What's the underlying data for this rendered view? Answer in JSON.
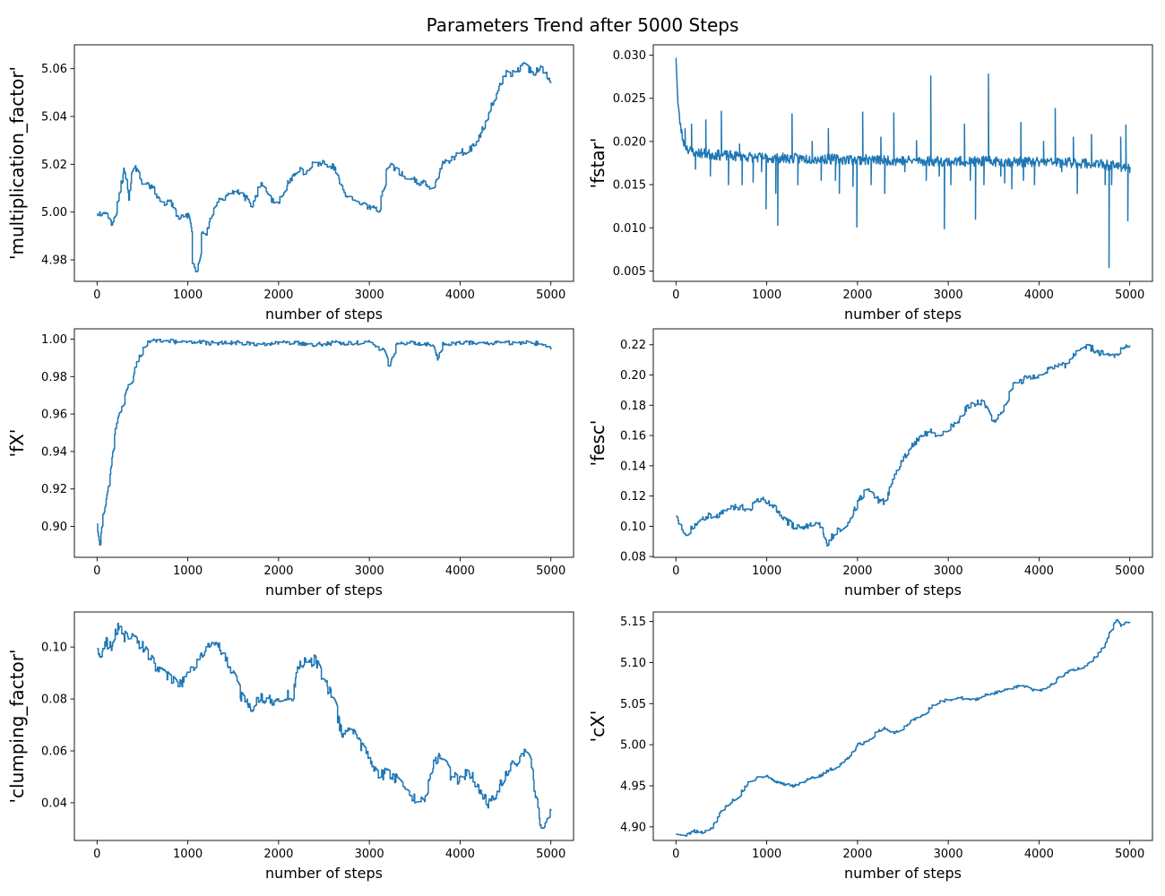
{
  "figure": {
    "title": "Parameters Trend after 5000 Steps"
  },
  "colors": {
    "line": "#1f77b4",
    "axes": "#000000",
    "background": "#ffffff"
  },
  "chart_data": [
    {
      "type": "line",
      "title": "",
      "xlabel": "number of steps",
      "ylabel": "'multiplication_factor'",
      "xlim": [
        -250,
        5250
      ],
      "ylim": [
        4.971,
        5.07
      ],
      "xticks": [
        0,
        1000,
        2000,
        3000,
        4000,
        5000
      ],
      "yticks": [
        4.98,
        5.0,
        5.02,
        5.04,
        5.06
      ],
      "ytick_labels": [
        "4.98",
        "5.00",
        "5.02",
        "5.04",
        "5.06"
      ],
      "series": [
        {
          "style": "step-noise",
          "seed": 11,
          "noise": 0.0015,
          "x": [
            0,
            50,
            100,
            150,
            200,
            250,
            300,
            350,
            400,
            450,
            500,
            600,
            700,
            800,
            900,
            1000,
            1050,
            1100,
            1150,
            1200,
            1300,
            1400,
            1500,
            1600,
            1700,
            1800,
            1900,
            2000,
            2100,
            2200,
            2300,
            2400,
            2500,
            2600,
            2700,
            2800,
            2900,
            3000,
            3100,
            3150,
            3200,
            3300,
            3400,
            3500,
            3600,
            3700,
            3800,
            3900,
            4000,
            4100,
            4200,
            4300,
            4400,
            4500,
            4600,
            4700,
            4800,
            4900,
            5000
          ],
          "y": [
            5.0,
            4.999,
            5.001,
            4.994,
            5.0,
            5.01,
            5.018,
            5.006,
            5.022,
            5.015,
            5.012,
            5.011,
            5.004,
            5.004,
            4.998,
            4.999,
            4.978,
            4.975,
            4.992,
            4.99,
            5.004,
            5.005,
            5.009,
            5.008,
            5.002,
            5.012,
            5.006,
            5.004,
            5.012,
            5.018,
            5.016,
            5.021,
            5.02,
            5.019,
            5.009,
            5.006,
            5.003,
            5.002,
            5.0,
            5.01,
            5.02,
            5.018,
            5.014,
            5.013,
            5.012,
            5.01,
            5.02,
            5.022,
            5.025,
            5.026,
            5.03,
            5.04,
            5.05,
            5.058,
            5.058,
            5.062,
            5.058,
            5.06,
            5.054
          ]
        }
      ]
    },
    {
      "type": "line",
      "title": "",
      "xlabel": "number of steps",
      "ylabel": "'fstar'",
      "xlim": [
        -250,
        5250
      ],
      "ylim": [
        0.0038,
        0.0312
      ],
      "xticks": [
        0,
        1000,
        2000,
        3000,
        4000,
        5000
      ],
      "yticks": [
        0.005,
        0.01,
        0.015,
        0.02,
        0.025,
        0.03
      ],
      "ytick_labels": [
        "0.005",
        "0.010",
        "0.015",
        "0.020",
        "0.025",
        "0.030"
      ],
      "series": [
        {
          "style": "spiky",
          "seed": 23,
          "noise": 0.0006,
          "x": [
            0,
            20,
            40,
            70,
            100,
            150,
            200,
            300,
            500,
            1000,
            1500,
            2000,
            2500,
            3000,
            3500,
            4000,
            4500,
            5000
          ],
          "y": [
            0.03,
            0.0245,
            0.0225,
            0.0205,
            0.0195,
            0.019,
            0.0188,
            0.0186,
            0.0184,
            0.0181,
            0.018,
            0.0179,
            0.0178,
            0.0177,
            0.0177,
            0.0176,
            0.0175,
            0.017
          ],
          "spikes": [
            {
              "x": 100,
              "y": 0.0215
            },
            {
              "x": 170,
              "y": 0.022
            },
            {
              "x": 215,
              "y": 0.0168
            },
            {
              "x": 330,
              "y": 0.0225
            },
            {
              "x": 380,
              "y": 0.016
            },
            {
              "x": 500,
              "y": 0.0235
            },
            {
              "x": 580,
              "y": 0.015
            },
            {
              "x": 700,
              "y": 0.0197
            },
            {
              "x": 730,
              "y": 0.015
            },
            {
              "x": 850,
              "y": 0.0153
            },
            {
              "x": 940,
              "y": 0.0165
            },
            {
              "x": 990,
              "y": 0.0122
            },
            {
              "x": 1100,
              "y": 0.014
            },
            {
              "x": 1120,
              "y": 0.0103
            },
            {
              "x": 1280,
              "y": 0.0232
            },
            {
              "x": 1340,
              "y": 0.015
            },
            {
              "x": 1500,
              "y": 0.02
            },
            {
              "x": 1600,
              "y": 0.0155
            },
            {
              "x": 1680,
              "y": 0.0215
            },
            {
              "x": 1760,
              "y": 0.0155
            },
            {
              "x": 1800,
              "y": 0.014
            },
            {
              "x": 1950,
              "y": 0.0148
            },
            {
              "x": 1990,
              "y": 0.0101
            },
            {
              "x": 2060,
              "y": 0.0234
            },
            {
              "x": 2150,
              "y": 0.015
            },
            {
              "x": 2260,
              "y": 0.0205
            },
            {
              "x": 2300,
              "y": 0.014
            },
            {
              "x": 2400,
              "y": 0.0233
            },
            {
              "x": 2520,
              "y": 0.0165
            },
            {
              "x": 2650,
              "y": 0.0201
            },
            {
              "x": 2760,
              "y": 0.0155
            },
            {
              "x": 2810,
              "y": 0.0276
            },
            {
              "x": 2900,
              "y": 0.016
            },
            {
              "x": 2960,
              "y": 0.0099
            },
            {
              "x": 3030,
              "y": 0.015
            },
            {
              "x": 3180,
              "y": 0.022
            },
            {
              "x": 3240,
              "y": 0.0155
            },
            {
              "x": 3300,
              "y": 0.011
            },
            {
              "x": 3390,
              "y": 0.015
            },
            {
              "x": 3440,
              "y": 0.0278
            },
            {
              "x": 3580,
              "y": 0.016
            },
            {
              "x": 3620,
              "y": 0.0152
            },
            {
              "x": 3700,
              "y": 0.0145
            },
            {
              "x": 3800,
              "y": 0.0222
            },
            {
              "x": 3830,
              "y": 0.0155
            },
            {
              "x": 3950,
              "y": 0.015
            },
            {
              "x": 4050,
              "y": 0.02
            },
            {
              "x": 4180,
              "y": 0.0238
            },
            {
              "x": 4250,
              "y": 0.0165
            },
            {
              "x": 4380,
              "y": 0.0205
            },
            {
              "x": 4420,
              "y": 0.014
            },
            {
              "x": 4580,
              "y": 0.0208
            },
            {
              "x": 4730,
              "y": 0.015
            },
            {
              "x": 4770,
              "y": 0.0054
            },
            {
              "x": 4800,
              "y": 0.015
            },
            {
              "x": 4900,
              "y": 0.0205
            },
            {
              "x": 4960,
              "y": 0.0219
            },
            {
              "x": 4980,
              "y": 0.0108
            },
            {
              "x": 5000,
              "y": 0.0164
            }
          ]
        }
      ]
    },
    {
      "type": "line",
      "title": "",
      "xlabel": "number of steps",
      "ylabel": "'fX'",
      "xlim": [
        -250,
        5250
      ],
      "ylim": [
        0.8835,
        1.0055
      ],
      "xticks": [
        0,
        1000,
        2000,
        3000,
        4000,
        5000
      ],
      "yticks": [
        0.9,
        0.92,
        0.94,
        0.96,
        0.98,
        1.0
      ],
      "ytick_labels": [
        "0.90",
        "0.92",
        "0.94",
        "0.96",
        "0.98",
        "1.00"
      ],
      "series": [
        {
          "style": "step-noise",
          "seed": 37,
          "noise": 0.0012,
          "cap": 1.0,
          "x": [
            0,
            30,
            60,
            90,
            120,
            150,
            180,
            220,
            260,
            300,
            340,
            380,
            420,
            460,
            500,
            550,
            600,
            700,
            800,
            900,
            1000,
            1200,
            1400,
            1600,
            1800,
            2000,
            2200,
            2400,
            2600,
            2800,
            3000,
            3150,
            3200,
            3250,
            3300,
            3500,
            3700,
            3750,
            3800,
            4000,
            4200,
            4400,
            4600,
            4800,
            4950,
            5000
          ],
          "y": [
            0.901,
            0.889,
            0.905,
            0.91,
            0.92,
            0.93,
            0.945,
            0.957,
            0.963,
            0.968,
            0.975,
            0.978,
            0.985,
            0.99,
            0.994,
            0.998,
            1.0,
            0.999,
            0.999,
            0.998,
            0.999,
            0.998,
            0.998,
            0.998,
            0.997,
            0.998,
            0.998,
            0.997,
            0.998,
            0.998,
            0.998,
            0.994,
            0.984,
            0.99,
            0.997,
            0.998,
            0.997,
            0.99,
            0.997,
            0.998,
            0.998,
            0.998,
            0.998,
            0.998,
            0.997,
            0.995
          ]
        }
      ]
    },
    {
      "type": "line",
      "title": "",
      "xlabel": "number of steps",
      "ylabel": "'fesc'",
      "xlim": [
        -250,
        5250
      ],
      "ylim": [
        0.0795,
        0.2305
      ],
      "xticks": [
        0,
        1000,
        2000,
        3000,
        4000,
        5000
      ],
      "yticks": [
        0.08,
        0.1,
        0.12,
        0.14,
        0.16,
        0.18,
        0.2,
        0.22
      ],
      "ytick_labels": [
        "0.08",
        "0.10",
        "0.12",
        "0.14",
        "0.16",
        "0.18",
        "0.20",
        "0.22"
      ],
      "series": [
        {
          "style": "step-noise",
          "seed": 51,
          "noise": 0.0022,
          "x": [
            0,
            50,
            100,
            200,
            300,
            400,
            500,
            600,
            700,
            800,
            900,
            1000,
            1100,
            1200,
            1300,
            1400,
            1500,
            1600,
            1650,
            1700,
            1800,
            1900,
            2000,
            2100,
            2200,
            2300,
            2400,
            2500,
            2600,
            2700,
            2800,
            2900,
            3000,
            3100,
            3200,
            3300,
            3400,
            3450,
            3500,
            3600,
            3700,
            3800,
            3900,
            4000,
            4100,
            4200,
            4300,
            4400,
            4500,
            4600,
            4700,
            4800,
            4900,
            5000
          ],
          "y": [
            0.105,
            0.1,
            0.093,
            0.101,
            0.106,
            0.107,
            0.108,
            0.112,
            0.113,
            0.111,
            0.117,
            0.117,
            0.112,
            0.104,
            0.1,
            0.099,
            0.101,
            0.101,
            0.087,
            0.092,
            0.098,
            0.103,
            0.115,
            0.126,
            0.118,
            0.116,
            0.132,
            0.145,
            0.153,
            0.16,
            0.163,
            0.16,
            0.164,
            0.169,
            0.178,
            0.181,
            0.182,
            0.17,
            0.168,
            0.178,
            0.193,
            0.196,
            0.199,
            0.2,
            0.203,
            0.205,
            0.207,
            0.215,
            0.22,
            0.217,
            0.214,
            0.213,
            0.216,
            0.219
          ]
        }
      ]
    },
    {
      "type": "line",
      "title": "",
      "xlabel": "number of steps",
      "ylabel": "'clumping_factor'",
      "xlim": [
        -250,
        5250
      ],
      "ylim": [
        0.0255,
        0.1135
      ],
      "xticks": [
        0,
        1000,
        2000,
        3000,
        4000,
        5000
      ],
      "yticks": [
        0.04,
        0.06,
        0.08,
        0.1
      ],
      "ytick_labels": [
        "0.04",
        "0.06",
        "0.08",
        "0.10"
      ],
      "series": [
        {
          "style": "step-noise",
          "seed": 67,
          "noise": 0.0022,
          "x": [
            0,
            50,
            100,
            150,
            200,
            250,
            300,
            400,
            500,
            600,
            700,
            800,
            900,
            1000,
            1100,
            1200,
            1300,
            1400,
            1500,
            1600,
            1700,
            1800,
            1900,
            2000,
            2100,
            2150,
            2200,
            2300,
            2400,
            2500,
            2600,
            2700,
            2800,
            2900,
            3000,
            3100,
            3200,
            3300,
            3400,
            3500,
            3600,
            3700,
            3800,
            3900,
            4000,
            4100,
            4200,
            4300,
            4400,
            4500,
            4600,
            4700,
            4750,
            4800,
            4850,
            4900,
            4950,
            5000
          ],
          "y": [
            0.1,
            0.097,
            0.102,
            0.1,
            0.106,
            0.109,
            0.104,
            0.103,
            0.1,
            0.095,
            0.09,
            0.088,
            0.085,
            0.09,
            0.094,
            0.1,
            0.101,
            0.098,
            0.089,
            0.08,
            0.077,
            0.081,
            0.08,
            0.078,
            0.082,
            0.079,
            0.092,
            0.094,
            0.095,
            0.087,
            0.08,
            0.065,
            0.068,
            0.062,
            0.058,
            0.05,
            0.052,
            0.049,
            0.045,
            0.041,
            0.04,
            0.055,
            0.058,
            0.05,
            0.049,
            0.052,
            0.045,
            0.04,
            0.043,
            0.052,
            0.055,
            0.06,
            0.058,
            0.05,
            0.038,
            0.03,
            0.034,
            0.036
          ]
        }
      ]
    },
    {
      "type": "line",
      "title": "",
      "xlabel": "number of steps",
      "ylabel": "'cX'",
      "xlim": [
        -250,
        5250
      ],
      "ylim": [
        4.8835,
        5.1615
      ],
      "xticks": [
        0,
        1000,
        2000,
        3000,
        4000,
        5000
      ],
      "yticks": [
        4.9,
        4.95,
        5.0,
        5.05,
        5.1,
        5.15
      ],
      "ytick_labels": [
        "4.90",
        "4.95",
        "5.00",
        "5.05",
        "5.10",
        "5.15"
      ],
      "series": [
        {
          "style": "step-noise",
          "seed": 83,
          "noise": 0.0018,
          "x": [
            0,
            100,
            200,
            300,
            400,
            500,
            600,
            700,
            800,
            900,
            1000,
            1100,
            1200,
            1300,
            1400,
            1500,
            1600,
            1700,
            1800,
            1900,
            2000,
            2100,
            2200,
            2300,
            2400,
            2500,
            2600,
            2700,
            2800,
            2900,
            3000,
            3100,
            3200,
            3300,
            3400,
            3500,
            3600,
            3700,
            3800,
            3900,
            4000,
            4100,
            4200,
            4300,
            4400,
            4500,
            4600,
            4700,
            4750,
            4800,
            4850,
            4900,
            5000
          ],
          "y": [
            4.89,
            4.89,
            4.895,
            4.893,
            4.9,
            4.92,
            4.93,
            4.94,
            4.955,
            4.96,
            4.962,
            4.955,
            4.952,
            4.95,
            4.955,
            4.96,
            4.963,
            4.97,
            4.975,
            4.985,
            5.0,
            5.003,
            5.015,
            5.02,
            5.015,
            5.02,
            5.03,
            5.035,
            5.045,
            5.052,
            5.055,
            5.056,
            5.057,
            5.055,
            5.06,
            5.063,
            5.066,
            5.068,
            5.072,
            5.068,
            5.065,
            5.07,
            5.08,
            5.088,
            5.092,
            5.095,
            5.105,
            5.118,
            5.128,
            5.142,
            5.152,
            5.145,
            5.15
          ]
        }
      ]
    }
  ]
}
